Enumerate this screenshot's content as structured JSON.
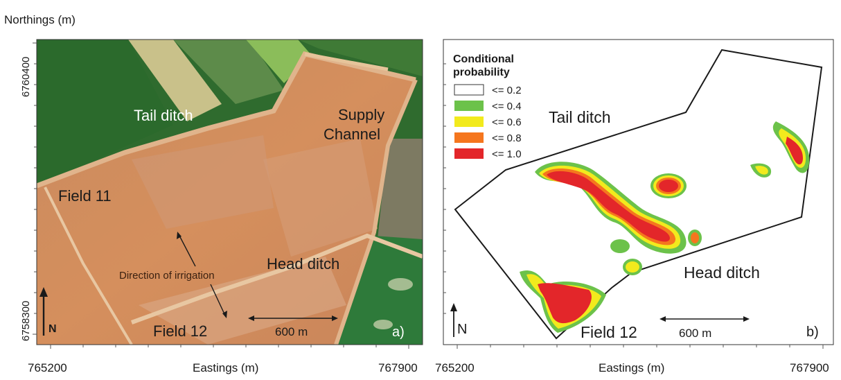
{
  "y_axis_label": "Northings (m)",
  "y_ticks": [
    "6760400",
    "6758300"
  ],
  "x_ticks_left": [
    "765200",
    "767900"
  ],
  "x_ticks_right": [
    "765200",
    "767900"
  ],
  "x_axis_label": "Eastings (m)",
  "panel_a": {
    "labels": {
      "tail_ditch": "Tail ditch",
      "supply_line1": "Supply",
      "supply_line2": "Channel",
      "field11": "Field 11",
      "direction": "Direction of irrigation",
      "head_ditch": "Head ditch",
      "field12": "Field 12",
      "scale": "600 m",
      "north": "N",
      "panel_letter": "a)"
    }
  },
  "panel_b": {
    "labels": {
      "tail_ditch": "Tail ditch",
      "head_ditch": "Head ditch",
      "field12": "Field 12",
      "scale": "600 m",
      "north": "N",
      "panel_letter": "b)"
    },
    "legend": {
      "title_line1": "Conditional",
      "title_line2": "probability",
      "classes": [
        {
          "label": "<= 0.2",
          "color": "#ffffff"
        },
        {
          "label": "<= 0.4",
          "color": "#6cc24a"
        },
        {
          "label": "<= 0.6",
          "color": "#f2ea1d"
        },
        {
          "label": "<= 0.8",
          "color": "#f5761e"
        },
        {
          "label": "<= 1.0",
          "color": "#e3262a"
        }
      ]
    }
  }
}
